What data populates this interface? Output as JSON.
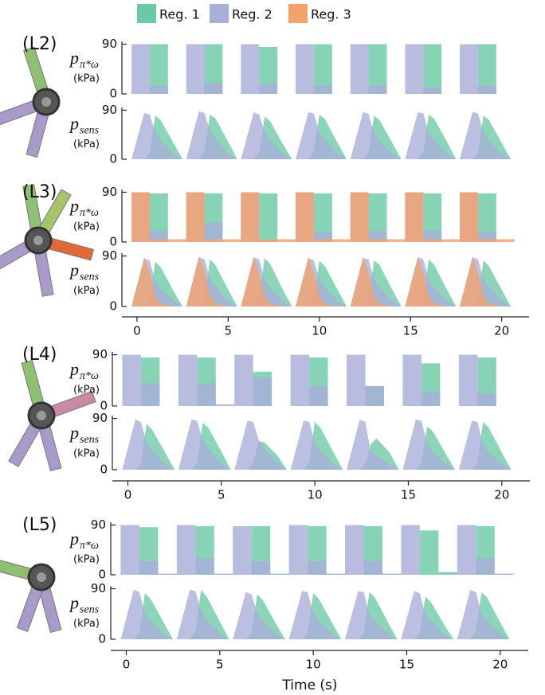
{
  "chart_data": [
    {
      "type": "step",
      "panel": "(L2)",
      "ylabel": "p",
      "ylabel_sub": "π*ω",
      "yunit": "(kPa)",
      "ylim": [
        0,
        95
      ],
      "yticks": [
        0,
        90
      ],
      "xlim": [
        -1,
        21.5
      ],
      "x": [
        -0.3,
        0.7,
        1.7,
        2.7,
        3.7,
        4.7,
        5.7,
        6.7,
        7.7,
        8.7,
        9.7,
        10.7,
        11.7,
        12.7,
        13.7,
        14.7,
        15.7,
        16.7,
        17.7,
        18.7,
        19.7,
        20.7
      ],
      "series": [
        {
          "name": "Reg. 1",
          "color": "#6cc9a5",
          "values": [
            0,
            90,
            0,
            0,
            90,
            0,
            0,
            85,
            0,
            0,
            90,
            0,
            0,
            90,
            0,
            0,
            90,
            0,
            0,
            90,
            0,
            0
          ]
        },
        {
          "name": "Reg. 2",
          "color": "#a8aed8",
          "values": [
            90,
            15,
            0,
            90,
            20,
            0,
            90,
            18,
            0,
            90,
            15,
            0,
            90,
            15,
            0,
            90,
            12,
            0,
            90,
            15,
            0,
            0
          ]
        }
      ]
    },
    {
      "type": "area",
      "ylabel": "p",
      "ylabel_sub": "sens",
      "yunit": "(kPa)",
      "ylim": [
        0,
        95
      ],
      "yticks": [
        0,
        90
      ],
      "xlim": [
        -1,
        21.5
      ],
      "x": [
        -0.3,
        0.4,
        0.7,
        1.0,
        1.3,
        2.0,
        2.5,
        2.7,
        3.4,
        3.7,
        4.0,
        4.3,
        5.0,
        5.5,
        5.7,
        6.4,
        6.7,
        7.0,
        7.3,
        8.0,
        8.5,
        8.7,
        9.4,
        9.7,
        10.0,
        10.3,
        11.0,
        11.5,
        11.7,
        12.4,
        12.7,
        13.0,
        13.3,
        14.0,
        14.5,
        14.7,
        15.4,
        15.7,
        16.0,
        16.3,
        17.0,
        17.5,
        17.7,
        18.4,
        18.7,
        19.0,
        19.3,
        20.0,
        20.5
      ],
      "series": [
        {
          "name": "Reg. 1",
          "color": "#6cc9a5",
          "values": [
            0,
            0,
            12,
            80,
            72,
            30,
            0,
            0,
            0,
            15,
            82,
            75,
            32,
            0,
            0,
            0,
            12,
            78,
            70,
            28,
            0,
            0,
            0,
            14,
            82,
            74,
            30,
            0,
            0,
            0,
            12,
            80,
            72,
            30,
            0,
            0,
            0,
            12,
            82,
            74,
            32,
            0,
            0,
            0,
            12,
            80,
            72,
            30,
            0
          ]
        },
        {
          "name": "Reg. 2",
          "color": "#a8aed8",
          "values": [
            0,
            85,
            82,
            50,
            35,
            10,
            0,
            0,
            88,
            85,
            52,
            38,
            10,
            0,
            0,
            86,
            82,
            50,
            35,
            10,
            0,
            0,
            86,
            84,
            50,
            36,
            10,
            0,
            0,
            87,
            83,
            48,
            35,
            10,
            0,
            0,
            86,
            84,
            50,
            36,
            10,
            0,
            0,
            87,
            84,
            50,
            35,
            10,
            0
          ]
        }
      ]
    },
    {
      "type": "step",
      "panel": "(L3)",
      "ylabel": "p",
      "ylabel_sub": "π*ω",
      "yunit": "(kPa)",
      "ylim": [
        0,
        95
      ],
      "yticks": [
        0,
        90
      ],
      "xlim": [
        -1,
        21.5
      ],
      "x": [
        -0.3,
        0.7,
        1.7,
        2.7,
        3.7,
        4.7,
        5.7,
        6.7,
        7.7,
        8.7,
        9.7,
        10.7,
        11.7,
        12.7,
        13.7,
        14.7,
        15.7,
        16.7,
        17.7,
        18.7,
        19.7,
        20.7
      ],
      "series": [
        {
          "name": "Reg. 1",
          "color": "#6cc9a5",
          "values": [
            0,
            88,
            0,
            0,
            88,
            0,
            0,
            88,
            0,
            0,
            88,
            0,
            0,
            88,
            0,
            0,
            88,
            0,
            0,
            88,
            0,
            0
          ]
        },
        {
          "name": "Reg. 2",
          "color": "#a8aed8",
          "values": [
            90,
            20,
            0,
            90,
            35,
            0,
            90,
            2,
            0,
            90,
            18,
            0,
            90,
            20,
            0,
            90,
            20,
            0,
            90,
            18,
            0,
            0
          ]
        },
        {
          "name": "Reg. 3",
          "color": "#f4a26c",
          "values": [
            90,
            5,
            5,
            90,
            5,
            5,
            90,
            5,
            5,
            90,
            5,
            5,
            90,
            5,
            5,
            90,
            5,
            5,
            90,
            5,
            5,
            5
          ]
        }
      ]
    },
    {
      "type": "area",
      "ylabel": "p",
      "ylabel_sub": "sens",
      "yunit": "(kPa)",
      "ylim": [
        0,
        95
      ],
      "yticks": [
        0,
        90
      ],
      "xlim": [
        -1,
        21.5
      ],
      "xticks": [
        0,
        5,
        10,
        15,
        20
      ],
      "x": [
        -0.3,
        0.4,
        0.7,
        1.0,
        1.3,
        2.0,
        2.5,
        2.7,
        3.4,
        3.7,
        4.0,
        4.3,
        5.0,
        5.5,
        5.7,
        6.4,
        6.7,
        7.0,
        7.3,
        8.0,
        8.5,
        8.7,
        9.4,
        9.7,
        10.0,
        10.3,
        11.0,
        11.5,
        11.7,
        12.4,
        12.7,
        13.0,
        13.3,
        14.0,
        14.5,
        14.7,
        15.4,
        15.7,
        16.0,
        16.3,
        17.0,
        17.5,
        17.7,
        18.4,
        18.7,
        19.0,
        19.3,
        20.0,
        20.5
      ],
      "series": [
        {
          "name": "Reg. 1",
          "color": "#6cc9a5",
          "values": [
            0,
            0,
            12,
            80,
            70,
            28,
            0,
            0,
            0,
            14,
            84,
            74,
            30,
            0,
            0,
            0,
            14,
            86,
            76,
            30,
            0,
            0,
            0,
            12,
            82,
            72,
            30,
            0,
            0,
            0,
            12,
            82,
            74,
            30,
            0,
            0,
            0,
            14,
            84,
            74,
            30,
            0,
            0,
            0,
            12,
            82,
            72,
            30,
            0
          ]
        },
        {
          "name": "Reg. 2",
          "color": "#a8aed8",
          "values": [
            0,
            86,
            82,
            45,
            32,
            10,
            0,
            0,
            88,
            84,
            50,
            36,
            10,
            0,
            0,
            88,
            84,
            48,
            35,
            10,
            0,
            0,
            86,
            82,
            48,
            34,
            10,
            0,
            0,
            86,
            84,
            48,
            35,
            10,
            0,
            0,
            88,
            84,
            48,
            34,
            10,
            0,
            0,
            88,
            84,
            48,
            35,
            10,
            0
          ]
        },
        {
          "name": "Reg. 3",
          "color": "#f4a26c",
          "values": [
            0,
            88,
            60,
            18,
            5,
            0,
            0,
            0,
            90,
            62,
            20,
            5,
            0,
            0,
            0,
            88,
            60,
            18,
            5,
            0,
            0,
            0,
            88,
            60,
            18,
            5,
            0,
            0,
            0,
            88,
            60,
            18,
            5,
            0,
            0,
            0,
            88,
            62,
            18,
            5,
            0,
            0,
            0,
            88,
            60,
            18,
            5,
            0,
            0
          ]
        }
      ]
    },
    {
      "type": "step",
      "panel": "(L4)",
      "ylabel": "p",
      "ylabel_sub": "π*ω",
      "yunit": "(kPa)",
      "ylim": [
        0,
        95
      ],
      "yticks": [
        0,
        90
      ],
      "xlim": [
        -1,
        21.5
      ],
      "x": [
        -0.3,
        0.7,
        1.7,
        2.7,
        3.7,
        4.7,
        5.7,
        6.7,
        7.7,
        8.7,
        9.7,
        10.7,
        11.7,
        12.7,
        13.7,
        14.7,
        15.7,
        16.7,
        17.7,
        18.7,
        19.7,
        20.7
      ],
      "series": [
        {
          "name": "Reg. 1",
          "color": "#6cc9a5",
          "values": [
            0,
            85,
            0,
            0,
            85,
            0,
            0,
            60,
            0,
            0,
            85,
            0,
            0,
            35,
            0,
            0,
            75,
            0,
            0,
            85,
            0,
            0
          ]
        },
        {
          "name": "Reg. 2",
          "color": "#a8aed8",
          "values": [
            90,
            40,
            0,
            90,
            40,
            3,
            90,
            50,
            0,
            90,
            35,
            0,
            90,
            35,
            0,
            90,
            25,
            0,
            90,
            22,
            0,
            0
          ]
        }
      ]
    },
    {
      "type": "area",
      "ylabel": "p",
      "ylabel_sub": "sens",
      "yunit": "(kPa)",
      "ylim": [
        0,
        95
      ],
      "yticks": [
        0,
        90
      ],
      "xlim": [
        -1,
        21.5
      ],
      "xticks": [
        0,
        5,
        10,
        15,
        20
      ],
      "x": [
        -0.3,
        0.4,
        0.7,
        1.0,
        1.3,
        2.0,
        2.5,
        2.7,
        3.4,
        3.7,
        4.0,
        4.3,
        5.0,
        5.5,
        5.7,
        6.4,
        6.7,
        7.0,
        7.3,
        8.0,
        8.5,
        8.7,
        9.4,
        9.7,
        10.0,
        10.3,
        11.0,
        11.5,
        11.7,
        12.4,
        12.7,
        13.0,
        13.3,
        14.0,
        14.5,
        14.7,
        15.4,
        15.7,
        16.0,
        16.3,
        17.0,
        17.5,
        17.7,
        18.4,
        18.7,
        19.0,
        19.3,
        20.0,
        20.5
      ],
      "series": [
        {
          "name": "Reg. 1",
          "color": "#6cc9a5",
          "values": [
            0,
            0,
            12,
            80,
            70,
            30,
            0,
            0,
            0,
            14,
            82,
            74,
            32,
            0,
            0,
            0,
            12,
            50,
            48,
            25,
            0,
            0,
            0,
            14,
            84,
            74,
            30,
            0,
            0,
            0,
            12,
            45,
            55,
            30,
            0,
            0,
            0,
            12,
            76,
            68,
            28,
            0,
            0,
            0,
            14,
            84,
            74,
            30,
            0
          ]
        },
        {
          "name": "Reg. 2",
          "color": "#a8aed8",
          "values": [
            0,
            88,
            84,
            48,
            35,
            10,
            0,
            0,
            88,
            86,
            52,
            38,
            10,
            0,
            0,
            86,
            84,
            52,
            38,
            12,
            0,
            0,
            86,
            84,
            48,
            35,
            10,
            0,
            0,
            88,
            84,
            30,
            25,
            10,
            0,
            0,
            88,
            86,
            46,
            32,
            10,
            0,
            0,
            86,
            84,
            44,
            30,
            10,
            0
          ]
        }
      ]
    },
    {
      "type": "step",
      "panel": "(L5)",
      "ylabel": "p",
      "ylabel_sub": "π*ω",
      "yunit": "(kPa)",
      "ylim": [
        0,
        95
      ],
      "yticks": [
        0,
        90
      ],
      "xlim": [
        -1,
        21.5
      ],
      "x": [
        -0.3,
        0.7,
        1.7,
        2.7,
        3.7,
        4.7,
        5.7,
        6.7,
        7.7,
        8.7,
        9.7,
        10.7,
        11.7,
        12.7,
        13.7,
        14.7,
        15.7,
        16.7,
        17.7,
        18.7,
        19.7,
        20.7
      ],
      "series": [
        {
          "name": "Reg. 1",
          "color": "#6cc9a5",
          "values": [
            0,
            86,
            2,
            0,
            88,
            2,
            0,
            88,
            2,
            0,
            88,
            2,
            0,
            88,
            2,
            0,
            80,
            5,
            0,
            88,
            2,
            0
          ]
        },
        {
          "name": "Reg. 2",
          "color": "#a8aed8",
          "values": [
            90,
            25,
            2,
            90,
            30,
            2,
            88,
            25,
            2,
            90,
            25,
            2,
            90,
            25,
            2,
            90,
            0,
            2,
            90,
            30,
            2,
            0
          ]
        }
      ]
    },
    {
      "type": "area",
      "ylabel": "p",
      "ylabel_sub": "sens",
      "yunit": "(kPa)",
      "ylim": [
        0,
        95
      ],
      "yticks": [
        0,
        90
      ],
      "xlim": [
        -1,
        21.5
      ],
      "xticks": [
        0,
        5,
        10,
        15,
        20
      ],
      "xlabel": "Time (s)",
      "x": [
        -0.3,
        0.4,
        0.7,
        1.0,
        1.3,
        2.0,
        2.5,
        2.7,
        3.4,
        3.7,
        4.0,
        4.3,
        5.0,
        5.5,
        5.7,
        6.4,
        6.7,
        7.0,
        7.3,
        8.0,
        8.5,
        8.7,
        9.4,
        9.7,
        10.0,
        10.3,
        11.0,
        11.5,
        11.7,
        12.4,
        12.7,
        13.0,
        13.3,
        14.0,
        14.5,
        14.7,
        15.4,
        15.7,
        16.0,
        16.3,
        17.0,
        17.5,
        17.7,
        18.4,
        18.7,
        19.0,
        19.3,
        20.0,
        20.5
      ],
      "series": [
        {
          "name": "Reg. 1",
          "color": "#6cc9a5",
          "values": [
            0,
            0,
            12,
            82,
            72,
            30,
            0,
            0,
            0,
            14,
            88,
            76,
            32,
            0,
            0,
            0,
            12,
            80,
            70,
            28,
            0,
            0,
            0,
            12,
            82,
            72,
            30,
            0,
            0,
            0,
            12,
            84,
            74,
            30,
            0,
            0,
            0,
            12,
            76,
            66,
            26,
            0,
            0,
            0,
            14,
            84,
            74,
            30,
            0
          ]
        },
        {
          "name": "Reg. 2",
          "color": "#a8aed8",
          "values": [
            0,
            88,
            84,
            46,
            34,
            10,
            0,
            0,
            88,
            86,
            50,
            36,
            10,
            0,
            0,
            84,
            80,
            46,
            34,
            10,
            0,
            0,
            86,
            84,
            46,
            34,
            10,
            0,
            0,
            86,
            84,
            46,
            34,
            10,
            0,
            0,
            86,
            82,
            44,
            32,
            10,
            0,
            0,
            88,
            84,
            46,
            34,
            10,
            0
          ]
        }
      ]
    }
  ]
}
